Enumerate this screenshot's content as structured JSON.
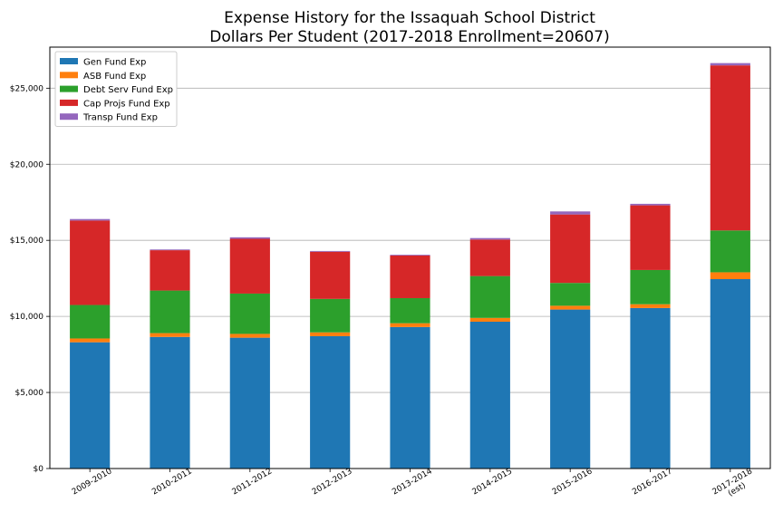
{
  "chart_data": {
    "type": "bar",
    "stacked": true,
    "title": [
      "Expense History for the Issaquah School District",
      "Dollars Per Student (2017-2018 Enrollment=20607)"
    ],
    "xlabel": "",
    "ylabel": "",
    "categories": [
      "2009-2010",
      "2010-2011",
      "2011-2012",
      "2012-2013",
      "2013-2014",
      "2014-2015",
      "2015-2016",
      "2016-2017",
      "2017-2018\n(est)"
    ],
    "ylim": [
      0,
      27700
    ],
    "yticks": [
      0,
      5000,
      10000,
      15000,
      20000,
      25000
    ],
    "ytick_labels": [
      "$0",
      "$5,000",
      "$10,000",
      "$15,000",
      "$20,000",
      "$25,000"
    ],
    "grid": "y",
    "legend_position": "top-left",
    "series": [
      {
        "name": "Gen Fund Exp",
        "color": "#1f77b4",
        "values": [
          8300,
          8650,
          8600,
          8700,
          9300,
          9650,
          10450,
          10550,
          12450
        ]
      },
      {
        "name": "ASB Fund Exp",
        "color": "#ff7f0e",
        "values": [
          250,
          250,
          250,
          250,
          250,
          250,
          250,
          250,
          450
        ]
      },
      {
        "name": "Debt Serv Fund Exp",
        "color": "#2ca02c",
        "values": [
          2200,
          2800,
          2650,
          2200,
          1650,
          2750,
          1500,
          2250,
          2750
        ]
      },
      {
        "name": "Cap Projs Fund Exp",
        "color": "#d62728",
        "values": [
          5550,
          2650,
          3600,
          3100,
          2800,
          2400,
          4500,
          4250,
          10850
        ]
      },
      {
        "name": "Transp Fund Exp",
        "color": "#9467bd",
        "values": [
          100,
          50,
          100,
          50,
          50,
          100,
          200,
          100,
          150
        ]
      }
    ]
  }
}
